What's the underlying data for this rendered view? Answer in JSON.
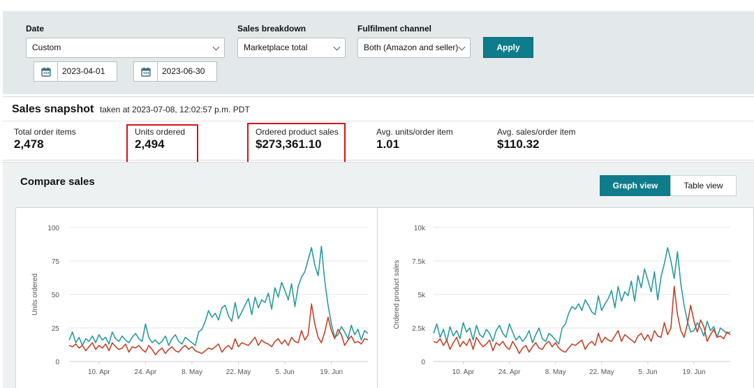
{
  "filters": {
    "date": {
      "label": "Date",
      "selected": "Custom",
      "start": "2023-04-01",
      "end": "2023-06-30"
    },
    "sales_breakdown": {
      "label": "Sales breakdown",
      "selected": "Marketplace total"
    },
    "fulfilment_channel": {
      "label": "Fulfilment channel",
      "selected": "Both (Amazon and seller)"
    },
    "apply_label": "Apply"
  },
  "snapshot": {
    "title": "Sales snapshot",
    "taken_at": "taken at 2023-07-08, 12:02:57 p.m. PDT",
    "metrics": [
      {
        "label": "Total order items",
        "value": "2,478"
      },
      {
        "label": "Units ordered",
        "value": "2,494"
      },
      {
        "label": "Ordered product sales",
        "value": "$273,361.10"
      },
      {
        "label": "Avg. units/order item",
        "value": "1.01"
      },
      {
        "label": "Avg. sales/order item",
        "value": "$110.32"
      }
    ],
    "highlight_color": "#d6101a"
  },
  "compare": {
    "title": "Compare sales",
    "graph_view_label": "Graph view",
    "table_view_label": "Table view",
    "active_view": "Graph view"
  },
  "colors": {
    "accent": "#0e7c8a",
    "series_current": "#2a9aa0",
    "series_previous": "#c0442a"
  },
  "icons": {
    "date_picker": "calendar-icon",
    "dropdown": "chevron-down-icon"
  },
  "chart_data": [
    {
      "type": "line",
      "ylabel": "Units ordered",
      "ylim": [
        0,
        100
      ],
      "yticks": [
        "0",
        "25",
        "50",
        "75",
        "100"
      ],
      "yticks_values": [
        0,
        25,
        50,
        75,
        100
      ],
      "xtick_labels": [
        "10. Apr",
        "24. Apr",
        "8. May",
        "22. May",
        "5. Jun",
        "19. Jun"
      ],
      "xtick_dates": [
        "2023-04-10",
        "2023-04-24",
        "2023-05-08",
        "2023-05-22",
        "2023-06-05",
        "2023-06-19"
      ],
      "x_range": [
        "2023-04-01",
        "2023-06-30"
      ],
      "grid": "horizontal",
      "series": [
        {
          "values": [
            16,
            22,
            14,
            18,
            12,
            17,
            15,
            19,
            14,
            20,
            16,
            18,
            13,
            22,
            17,
            15,
            19,
            16,
            14,
            18,
            21,
            17,
            15,
            28,
            18,
            14,
            16,
            13,
            15,
            19,
            12,
            17,
            20,
            15,
            13,
            18,
            16,
            14,
            12,
            22,
            24,
            30,
            38,
            33,
            36,
            31,
            40,
            42,
            34,
            30,
            44,
            32,
            37,
            42,
            47,
            35,
            48,
            40,
            46,
            44,
            51,
            39,
            55,
            48,
            59,
            53,
            46,
            58,
            41,
            56,
            63,
            67,
            76,
            85,
            72,
            64,
            86,
            60,
            42,
            28,
            18,
            20,
            26,
            22,
            17,
            27,
            20,
            24,
            16,
            23,
            21
          ]
        },
        {
          "values": [
            12,
            11,
            13,
            10,
            12,
            8,
            11,
            14,
            9,
            12,
            10,
            13,
            8,
            14,
            11,
            9,
            10,
            13,
            7,
            11,
            10,
            12,
            9,
            7,
            12,
            9,
            5,
            8,
            10,
            6,
            9,
            11,
            8,
            7,
            10,
            12,
            9,
            11,
            8,
            7,
            6,
            8,
            10,
            9,
            11,
            13,
            7,
            10,
            12,
            9,
            17,
            11,
            14,
            13,
            12,
            15,
            18,
            12,
            16,
            14,
            13,
            11,
            15,
            17,
            13,
            16,
            12,
            18,
            15,
            14,
            23,
            16,
            20,
            43,
            28,
            18,
            14,
            22,
            33,
            23,
            17,
            24,
            20,
            12,
            16,
            19,
            14,
            15,
            13,
            17,
            16
          ]
        }
      ]
    },
    {
      "type": "line",
      "ylabel": "Ordered product sales",
      "ylim": [
        0,
        10000
      ],
      "yticks": [
        "0",
        "2.5k",
        "5k",
        "7.5k",
        "10k"
      ],
      "yticks_values": [
        0,
        2500,
        5000,
        7500,
        10000
      ],
      "xtick_labels": [
        "10. Apr",
        "24. Apr",
        "8. May",
        "22. May",
        "5. Jun",
        "19. Jun"
      ],
      "xtick_dates": [
        "2023-04-10",
        "2023-04-24",
        "2023-05-08",
        "2023-05-22",
        "2023-06-05",
        "2023-06-19"
      ],
      "x_range": [
        "2023-04-01",
        "2023-06-30"
      ],
      "grid": "horizontal",
      "series": [
        {
          "values": [
            2100,
            2800,
            1800,
            2400,
            1500,
            2600,
            1900,
            2300,
            1700,
            2900,
            2200,
            2500,
            1600,
            2700,
            2000,
            1800,
            2400,
            2100,
            1500,
            2300,
            2700,
            2100,
            1800,
            2800,
            2200,
            1600,
            1900,
            1500,
            1800,
            2300,
            1400,
            2000,
            2500,
            1700,
            1500,
            2100,
            1900,
            1600,
            1300,
            2500,
            2800,
            3600,
            4100,
            3900,
            4300,
            3800,
            4600,
            4200,
            3700,
            3500,
            4900,
            3800,
            4300,
            4700,
            5300,
            4000,
            5600,
            4500,
            5200,
            4900,
            6000,
            4500,
            6400,
            5500,
            6900,
            6100,
            5200,
            6700,
            4600,
            6300,
            7300,
            8500,
            7500,
            6200,
            8200,
            5800,
            4200,
            3000,
            2200,
            2300,
            2900,
            2500,
            1900,
            3000,
            2300,
            2600,
            1800,
            2500,
            2300,
            2100,
            2200
          ]
        },
        {
          "values": [
            1500,
            1400,
            1700,
            1200,
            1600,
            900,
            1400,
            1800,
            1100,
            1500,
            1200,
            1700,
            900,
            1800,
            1400,
            1100,
            1300,
            1600,
            800,
            1400,
            1200,
            1500,
            1100,
            900,
            1500,
            1100,
            600,
            1000,
            1200,
            700,
            1100,
            1400,
            1000,
            900,
            1300,
            1500,
            1100,
            1400,
            1000,
            800,
            700,
            1000,
            1300,
            1200,
            1400,
            1600,
            900,
            1300,
            1500,
            1200,
            2100,
            1400,
            1800,
            1600,
            1500,
            1900,
            2300,
            1500,
            2000,
            1800,
            1600,
            1400,
            1900,
            2100,
            1600,
            2000,
            1500,
            2300,
            1900,
            1800,
            2900,
            2000,
            2500,
            5600,
            3500,
            2300,
            1800,
            2800,
            4200,
            3000,
            2200,
            3100,
            2600,
            1500,
            2000,
            2400,
            1800,
            1900,
            1700,
            2200,
            2000
          ]
        }
      ]
    }
  ]
}
